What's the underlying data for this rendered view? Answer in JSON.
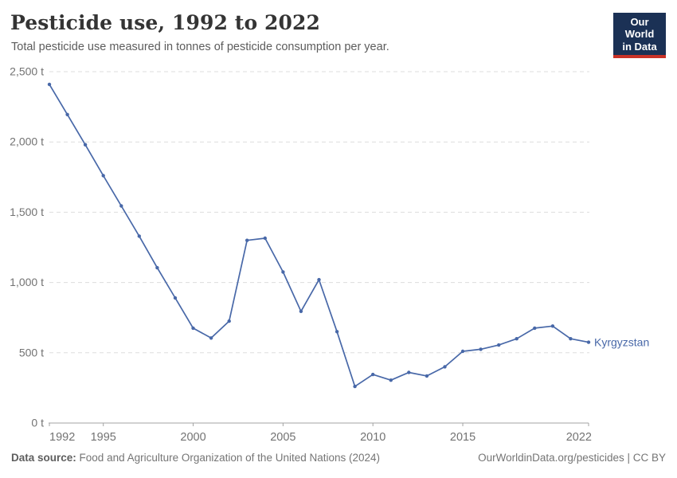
{
  "header": {
    "title": "Pesticide use, 1992 to 2022",
    "subtitle": "Total pesticide use measured in tonnes of pesticide consumption per year.",
    "logo": {
      "line1": "Our World",
      "line2": "in Data"
    }
  },
  "chart_data": {
    "type": "line",
    "title": "Pesticide use, 1992 to 2022",
    "xlabel": "",
    "ylabel": "",
    "xlim": [
      1992,
      2022
    ],
    "ylim": [
      0,
      2500
    ],
    "grid": "horizontal-dashed",
    "legend_position": "end-of-line-label",
    "x_ticks": [
      1992,
      1995,
      2000,
      2005,
      2010,
      2015,
      2022
    ],
    "y_ticks": [
      0,
      500,
      1000,
      1500,
      2000,
      2500
    ],
    "y_tick_labels": [
      "0 t",
      "500 t",
      "1,000 t",
      "1,500 t",
      "2,000 t",
      "2,500 t"
    ],
    "series": [
      {
        "name": "Kyrgyzstan",
        "color": "#4868A8",
        "x": [
          1992,
          1993,
          1994,
          1995,
          1996,
          1997,
          1998,
          1999,
          2000,
          2001,
          2002,
          2003,
          2004,
          2005,
          2006,
          2007,
          2008,
          2009,
          2010,
          2011,
          2012,
          2013,
          2014,
          2015,
          2016,
          2017,
          2018,
          2019,
          2020,
          2021,
          2022
        ],
        "values": [
          2410,
          2195,
          1980,
          1760,
          1545,
          1330,
          1105,
          890,
          675,
          605,
          725,
          1300,
          1315,
          1075,
          795,
          1020,
          650,
          260,
          345,
          305,
          360,
          335,
          400,
          510,
          525,
          555,
          600,
          675,
          690,
          600,
          575
        ]
      }
    ]
  },
  "footer": {
    "source_label": "Data source:",
    "source_text": "Food and Agriculture Organization of the United Nations (2024)",
    "link_text": "OurWorldinData.org/pesticides | CC BY"
  },
  "colors": {
    "series_line": "#4868A8",
    "grid_line": "#DDDDDD",
    "axis_line": "#A3A3A3",
    "tick_label": "#737373",
    "logo_navy": "#1B3155",
    "logo_red": "#C93227"
  }
}
